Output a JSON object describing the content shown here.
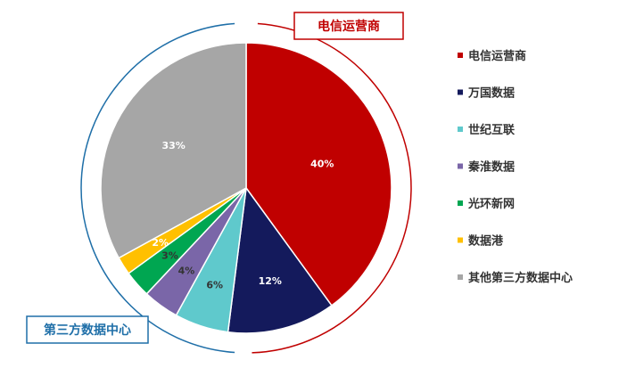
{
  "chart_data": {
    "type": "pie",
    "title": "",
    "categories": [
      "电信运营商",
      "万国数据",
      "世纪互联",
      "秦淮数据",
      "光环新网",
      "数据港",
      "其他第三方数据中心"
    ],
    "values": [
      40,
      12,
      6,
      4,
      3,
      2,
      33
    ],
    "labels": [
      "40%",
      "12%",
      "6%",
      "4%",
      "3%",
      "2%",
      "33%"
    ],
    "colors": [
      "#C00000",
      "#141A5C",
      "#5FC9CC",
      "#7A66A8",
      "#00A651",
      "#FFC000",
      "#A6A6A6"
    ],
    "label_colors": [
      "#ffffff",
      "#ffffff",
      "#333333",
      "#333333",
      "#333333",
      "#ffffff",
      "#ffffff"
    ],
    "legend_placement": "right",
    "annotations": [
      {
        "text": "电信运营商",
        "color": "#C00000"
      },
      {
        "text": "第三方数据中心",
        "color": "#1F6FA8"
      }
    ]
  }
}
